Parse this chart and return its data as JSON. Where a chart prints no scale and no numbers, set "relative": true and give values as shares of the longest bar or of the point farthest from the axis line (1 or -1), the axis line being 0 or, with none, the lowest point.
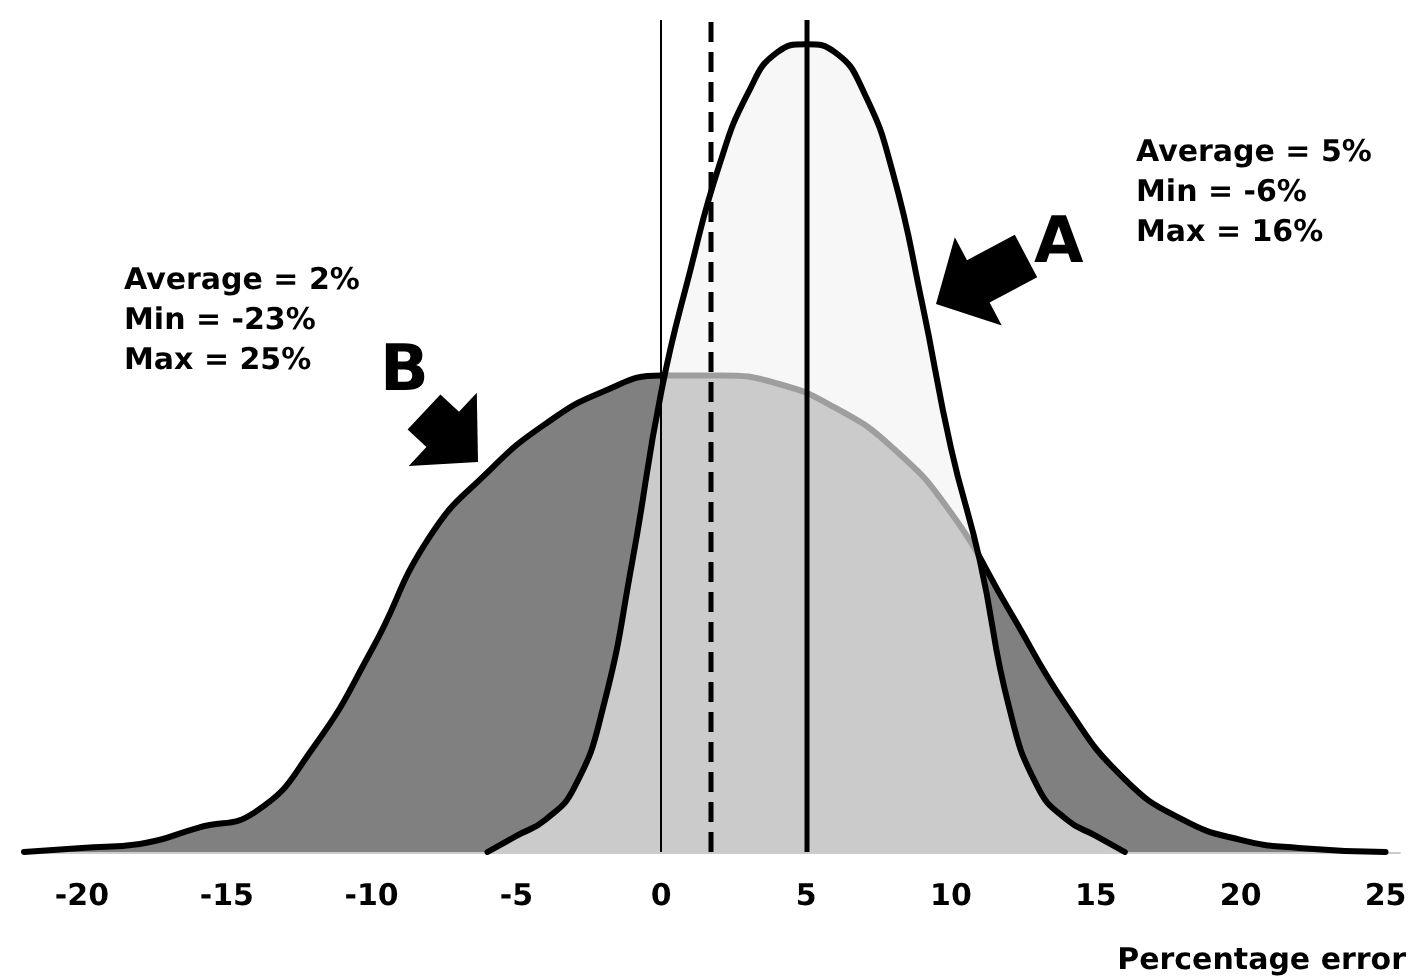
{
  "chart_data": {
    "type": "area",
    "relative": true,
    "xlabel": "Percentage error",
    "xlim": [
      -22,
      25.5
    ],
    "xticks": [
      -20,
      -15,
      -10,
      -5,
      0,
      5,
      10,
      15,
      20,
      25
    ],
    "tick_labels": "x",
    "grid": false,
    "marker": "none",
    "series": [
      {
        "color": "#808080",
        "x": [
          -22,
          -20,
          -18,
          -16,
          -14,
          -12,
          -10,
          -8,
          -6,
          -4,
          -2,
          0,
          2,
          4,
          6,
          8,
          10,
          12,
          14,
          16,
          18,
          20,
          22,
          25
        ],
        "values": [
          0,
          0.005,
          0.01,
          0.03,
          0.05,
          0.13,
          0.25,
          0.39,
          0.47,
          0.53,
          0.57,
          0.59,
          0.59,
          0.58,
          0.55,
          0.5,
          0.42,
          0.3,
          0.18,
          0.09,
          0.04,
          0.015,
          0.005,
          0
        ]
      },
      {
        "color": "#f3f3f3",
        "x": [
          -6,
          -5,
          -4,
          -3,
          -2,
          -1,
          0,
          1,
          2,
          3,
          4,
          5,
          6,
          7,
          8,
          9,
          10,
          11,
          12,
          13,
          14,
          15,
          16
        ],
        "values": [
          0,
          0.02,
          0.04,
          0.08,
          0.18,
          0.36,
          0.57,
          0.72,
          0.85,
          0.94,
          0.99,
          1,
          0.99,
          0.94,
          0.84,
          0.68,
          0.5,
          0.36,
          0.18,
          0.08,
          0.04,
          0.02,
          0
        ]
      }
    ],
    "ref_lines": [
      {
        "axis": "x",
        "value": 0,
        "label": null,
        "line_style": "solid"
      },
      {
        "axis": "x",
        "value": 5,
        "label": null,
        "line_style": "solid"
      },
      {
        "axis": "x",
        "value": 1.7,
        "label": null,
        "line_style": "dashed"
      }
    ],
    "annotations": [
      "B",
      "A",
      "Average = 2%",
      "Min = -23%",
      "Max = 25%",
      "Average = 5%",
      "Min = -6%",
      "Max = 16%"
    ]
  }
}
